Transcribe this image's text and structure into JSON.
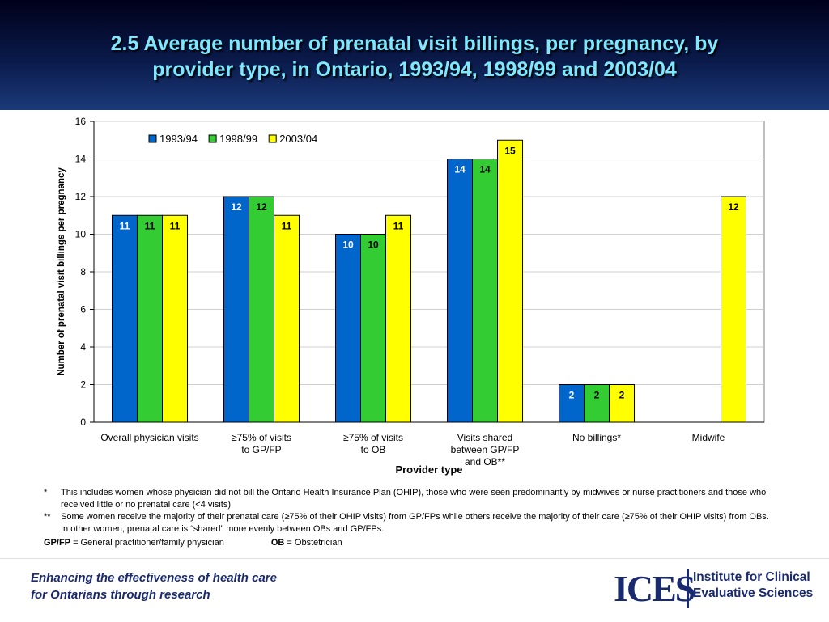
{
  "header": {
    "title_line1": "2.5  Average number of prenatal visit billings, per pregnancy, by",
    "title_line2": "provider type, in Ontario, 1993/94, 1998/99 and 2003/04"
  },
  "chart_data": {
    "type": "bar",
    "title": "2.5  Average number of prenatal visit billings, per pregnancy, by provider type, in Ontario, 1993/94, 1998/99 and 2003/04",
    "xlabel": "Provider type",
    "ylabel": "Number of prenatal visit billings per pregnancy",
    "ylim": [
      0,
      16
    ],
    "yticks": [
      0,
      2,
      4,
      6,
      8,
      10,
      12,
      14,
      16
    ],
    "grid": true,
    "legend": "top-left",
    "categories": [
      [
        "Overall physician visits"
      ],
      [
        "≥75% of visits",
        "to GP/FP"
      ],
      [
        "≥75% of visits",
        "to OB"
      ],
      [
        "Visits shared",
        "between GP/FP",
        "and OB**"
      ],
      [
        "No billings*"
      ],
      [
        "Midwife"
      ]
    ],
    "series": [
      {
        "name": "1993/94",
        "color": "#0066cc",
        "values": [
          11,
          12,
          10,
          14,
          2,
          null
        ]
      },
      {
        "name": "1998/99",
        "color": "#33cc33",
        "values": [
          11,
          12,
          10,
          14,
          2,
          null
        ]
      },
      {
        "name": "2003/04",
        "color": "#ffff00",
        "values": [
          11,
          11,
          11,
          15,
          2,
          12
        ]
      }
    ]
  },
  "footnotes": {
    "star_mark": "*",
    "star_text": "This includes women whose physician did not bill the Ontario Health Insurance Plan (OHIP), those who were seen predominantly by midwives or nurse practitioners and those who received little or no prenatal care (<4 visits).",
    "dstar_mark": "**",
    "dstar_text": "Some women receive the majority of their prenatal care (≥75% of their OHIP visits) from GP/FPs while others receive the majority of their care (≥75% of their OHIP visits) from OBs. In other women, prenatal care is “shared” more evenly between OBs and GP/FPs.",
    "gpfp_abbr": "GP/FP",
    "gpfp_def": " = General practitioner/family physician",
    "ob_abbr": "OB",
    "ob_def": " = Obstetrician"
  },
  "footer": {
    "tagline_line1": "Enhancing the effectiveness of health care",
    "tagline_line2": "for Ontarians through research",
    "logo_mark": "ICES",
    "logo_line1": "Institute for Clinical",
    "logo_line2": "Evaluative Sciences"
  }
}
